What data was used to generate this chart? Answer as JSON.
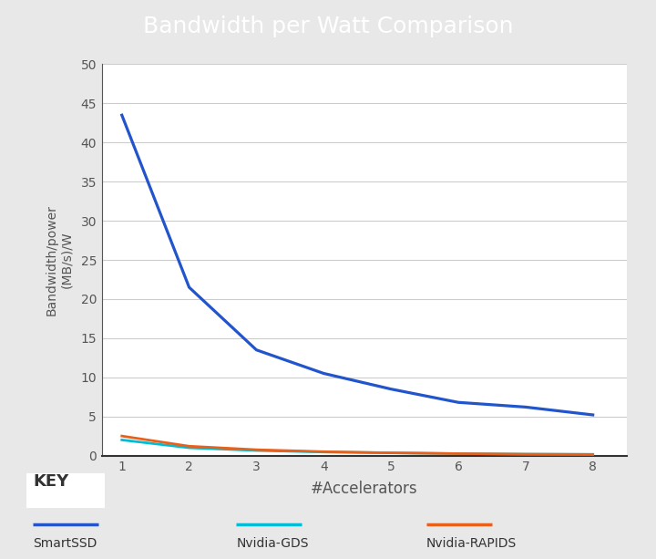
{
  "title": "Bandwidth per Watt Comparison",
  "xlabel": "#Accelerators",
  "ylabel": "Bandwidth/power\n(MB/s)/W",
  "title_bg_color": "#2c3e50",
  "title_text_color": "#ffffff",
  "plot_bg_color": "#ffffff",
  "outer_bg_color": "#e8e8e8",
  "legend_bg_color": "#e0e0e0",
  "x": [
    1,
    2,
    3,
    4,
    5,
    6,
    7,
    8
  ],
  "smartssd": [
    43.5,
    21.5,
    13.5,
    10.5,
    8.5,
    6.8,
    6.2,
    5.2
  ],
  "nvidia_gds": [
    2.0,
    1.0,
    0.65,
    0.45,
    0.35,
    0.25,
    0.18,
    0.15
  ],
  "nvidia_rapids": [
    2.5,
    1.2,
    0.75,
    0.5,
    0.35,
    0.25,
    0.18,
    0.15
  ],
  "smartssd_color": "#2255cc",
  "nvidia_gds_color": "#00bcd4",
  "nvidia_rapids_color": "#e8601a",
  "ylim": [
    0,
    50
  ],
  "yticks": [
    0,
    5,
    10,
    15,
    20,
    25,
    30,
    35,
    40,
    45,
    50
  ],
  "xticks": [
    1,
    2,
    3,
    4,
    5,
    6,
    7,
    8
  ],
  "grid_color": "#cccccc",
  "axis_color": "#555555",
  "tick_label_color": "#555555",
  "line_width": 2.0,
  "legend_labels": [
    "SmartSSD",
    "Nvidia-GDS",
    "Nvidia-RAPIDS"
  ],
  "key_text": "KEY"
}
